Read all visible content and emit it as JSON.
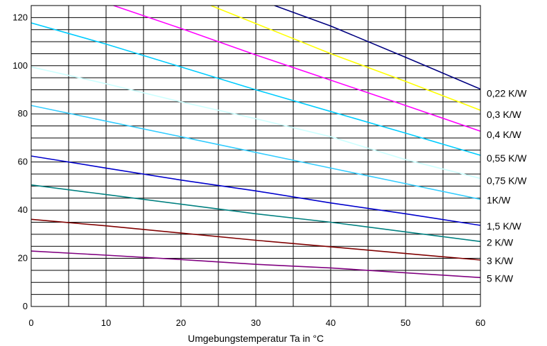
{
  "chart_data": {
    "type": "line",
    "title": "",
    "xlabel": "Umgebungstemperatur Ta in °C",
    "ylabel": "",
    "xlim": [
      0,
      60
    ],
    "ylim": [
      0,
      125
    ],
    "x_ticks": [
      0,
      10,
      20,
      30,
      40,
      50,
      60
    ],
    "y_ticks": [
      0,
      20,
      40,
      60,
      80,
      100,
      120
    ],
    "grid": {
      "x_step": 5,
      "y_step": 5,
      "on": true
    },
    "legend": "right",
    "series": [
      {
        "name": "0,22 K/W",
        "color": "#000080",
        "x": [
          32.5,
          40,
          50,
          60
        ],
        "y": [
          125,
          116.5,
          103.5,
          90.3
        ]
      },
      {
        "name": "0,3 K/W",
        "color": "#ffff00",
        "x": [
          24,
          30,
          40,
          50,
          60
        ],
        "y": [
          125,
          117.5,
          105,
          93.5,
          81.5
        ]
      },
      {
        "name": "0,4 K/W",
        "color": "#ff00ff",
        "x": [
          11,
          20,
          30,
          40,
          50,
          60
        ],
        "y": [
          125,
          115.5,
          104.5,
          94,
          83.5,
          72.8
        ]
      },
      {
        "name": "0,55 K/W",
        "color": "#00ccff",
        "x": [
          0,
          10,
          20,
          30,
          40,
          50,
          60
        ],
        "y": [
          117.8,
          109,
          99.5,
          90,
          81,
          72,
          62.8
        ]
      },
      {
        "name": "0,75 K/W",
        "color": "#ccffff",
        "x": [
          0,
          10,
          20,
          30,
          40,
          50,
          60
        ],
        "y": [
          99.5,
          92.5,
          85,
          78,
          70.5,
          61,
          53.2
        ]
      },
      {
        "name": "1K/W",
        "color": "#33ccff",
        "x": [
          0,
          10,
          20,
          30,
          40,
          50,
          60
        ],
        "y": [
          83.5,
          77,
          70.5,
          64,
          57.5,
          51,
          44.5
        ]
      },
      {
        "name": "1,5 K/W",
        "color": "#0000cc",
        "x": [
          0,
          10,
          20,
          30,
          40,
          50,
          60
        ],
        "y": [
          62.5,
          57.5,
          52.5,
          48,
          43,
          38.5,
          33.7
        ]
      },
      {
        "name": "2 K/W",
        "color": "#008080",
        "x": [
          0,
          10,
          20,
          30,
          40,
          50,
          60
        ],
        "y": [
          50.5,
          46.5,
          42.5,
          38.5,
          35,
          31,
          27
        ]
      },
      {
        "name": "3 K/W",
        "color": "#800000",
        "x": [
          0,
          10,
          20,
          30,
          40,
          50,
          60
        ],
        "y": [
          36.2,
          33.5,
          30.5,
          27.5,
          24.8,
          22,
          19.3
        ]
      },
      {
        "name": "5 K/W",
        "color": "#800080",
        "x": [
          0,
          10,
          20,
          30,
          40,
          50,
          60
        ],
        "y": [
          23,
          21.3,
          19.5,
          17.5,
          16,
          14,
          12
        ]
      }
    ],
    "series_labels": [
      "0,22 K/W",
      "0,3 K/W",
      "0,4 K/W",
      "0,55 K/W",
      "0,75 K/W",
      "1K/W",
      "1,5 K/W",
      "2 K/W",
      "3 K/W",
      "5 K/W"
    ]
  }
}
